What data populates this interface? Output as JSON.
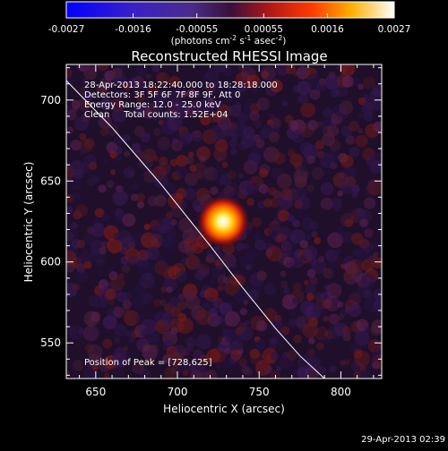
{
  "colorbar": {
    "tick_labels": [
      "-0.0027",
      "-0.0016",
      "-0.00055",
      "0.00055",
      "0.0016",
      "0.0027"
    ],
    "tick_values": [
      -0.0027,
      -0.0016,
      -0.00055,
      0.00055,
      0.0016,
      0.0027
    ],
    "range": [
      -0.0027,
      0.0027
    ],
    "unit_label_parts": [
      "(photons cm",
      "-2",
      " s",
      "-1",
      " asec",
      "-2",
      ")"
    ]
  },
  "chart_data": {
    "type": "heatmap",
    "title": "Reconstructed RHESSI Image",
    "xlabel": "Heliocentric X (arcsec)",
    "ylabel": "Heliocentric Y (arcsec)",
    "xlim": [
      632,
      825
    ],
    "ylim": [
      528,
      722
    ],
    "xticks": [
      650,
      700,
      750,
      800
    ],
    "yticks": [
      550,
      600,
      650,
      700
    ],
    "xtick_labels": [
      "650",
      "700",
      "750",
      "800"
    ],
    "ytick_labels": [
      "550",
      "600",
      "650",
      "700"
    ],
    "source_peak": {
      "x": 728,
      "y": 625,
      "value": 0.0027
    },
    "limb_curve": {
      "x": [
        632,
        660,
        690,
        720,
        740,
        760,
        775,
        790
      ],
      "y": [
        712,
        683,
        648,
        610,
        584,
        559,
        542,
        528
      ]
    },
    "annotations": [
      "28-Apr-2013 18:22:40.000 to 18:28:18.000",
      "Detectors: 3F 5F 6F 7F 8F 9F, Att 0",
      "Energy Range: 12.0 - 25.0 keV",
      "Clean     Total counts: 1.52E+04"
    ],
    "peak_label": "Position of Peak = [728,625]",
    "colormap": "blue-purple-red-yellow-white"
  },
  "footer": {
    "timestamp": "29-Apr-2013 02:39"
  }
}
